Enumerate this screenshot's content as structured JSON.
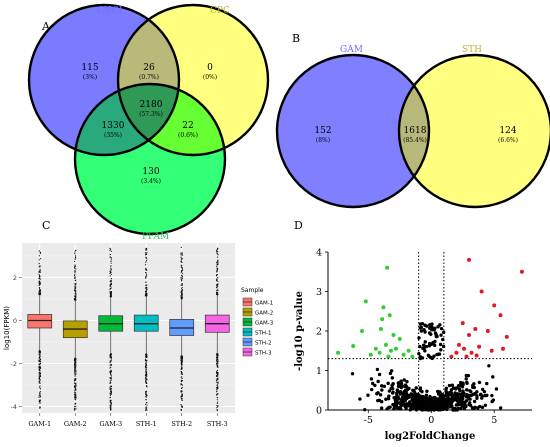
{
  "colors": {
    "cnci": "#7b7bff",
    "cpc": "#ffff7f",
    "pfam": "#33ff77",
    "cnci_cpc": "#b9b97a",
    "cnci_pfam": "#2aa97d",
    "cpc_pfam": "#66ff33",
    "all3": "#2e9a55",
    "gam": "#7f7fff",
    "sth": "#ffff80",
    "gam_sth": "#b8b87a",
    "box_gam1": "#f8766d",
    "box_gam2": "#b79f00",
    "box_gam3": "#00ba38",
    "box_sth1": "#00bfc4",
    "box_sth2": "#619cff",
    "box_sth3": "#f564e3",
    "volcano_up": "#e31a1c",
    "volcano_down": "#33cc33",
    "volcano_ns": "#000000"
  },
  "panels": {
    "a": "A",
    "b": "B",
    "c": "C",
    "d": "D"
  },
  "chart_data": [
    {
      "panel": "A",
      "type": "venn",
      "sets": [
        "CNCI",
        "CPC",
        "PFAM"
      ],
      "regions": [
        {
          "id": "cnci_only",
          "value": "115",
          "pct": "(3%)"
        },
        {
          "id": "cnci_cpc",
          "value": "26",
          "pct": "(0.7%)"
        },
        {
          "id": "cpc_only",
          "value": "0",
          "pct": "(0%)"
        },
        {
          "id": "all",
          "value": "2180",
          "pct": "(57.3%)"
        },
        {
          "id": "cnci_pfam",
          "value": "1330",
          "pct": "(35%)"
        },
        {
          "id": "cpc_pfam",
          "value": "22",
          "pct": "(0.6%)"
        },
        {
          "id": "pfam_only",
          "value": "130",
          "pct": "(3.4%)"
        }
      ]
    },
    {
      "panel": "B",
      "type": "venn",
      "sets": [
        "GAM",
        "STH"
      ],
      "regions": [
        {
          "id": "gam_only",
          "value": "152",
          "pct": "(8%)"
        },
        {
          "id": "both",
          "value": "1618",
          "pct": "(85.4%)"
        },
        {
          "id": "sth_only",
          "value": "124",
          "pct": "(6.6%)"
        }
      ]
    },
    {
      "panel": "C",
      "type": "box",
      "categories": [
        "GAM-1",
        "GAM-2",
        "GAM-3",
        "STH-1",
        "STH-2",
        "STH-3"
      ],
      "ylabel": "log10(FPKM)",
      "ylim": [
        -4.3,
        3.6
      ],
      "yticks": [
        -4,
        -2,
        0,
        2
      ],
      "legend_title": "Sample",
      "legend_position": "right",
      "grid": true,
      "boxes": [
        {
          "q1": -0.35,
          "median": 0.0,
          "q3": 0.28,
          "wlow": -1.4,
          "whigh": 1.2
        },
        {
          "q1": -0.8,
          "median": -0.4,
          "q3": -0.02,
          "wlow": -1.75,
          "whigh": 0.95
        },
        {
          "q1": -0.5,
          "median": -0.15,
          "q3": 0.22,
          "wlow": -1.55,
          "whigh": 1.1
        },
        {
          "q1": -0.5,
          "median": -0.15,
          "q3": 0.25,
          "wlow": -1.55,
          "whigh": 1.15
        },
        {
          "q1": -0.7,
          "median": -0.35,
          "q3": 0.05,
          "wlow": -1.65,
          "whigh": 1.0
        },
        {
          "q1": -0.55,
          "median": -0.15,
          "q3": 0.25,
          "wlow": -1.55,
          "whigh": 1.2
        }
      ],
      "outlier_range": [
        -4.2,
        3.4
      ]
    },
    {
      "panel": "D",
      "type": "scatter",
      "xlabel": "log2FoldChange",
      "ylabel": "-log10 p-value",
      "xlim": [
        -8.2,
        8.0
      ],
      "ylim": [
        0,
        4.0
      ],
      "xticks": [
        -5,
        0,
        5
      ],
      "yticks": [
        0,
        1,
        2,
        3,
        4
      ],
      "vlines": [
        -1,
        1
      ],
      "hline": 1.3,
      "up": [
        [
          3.0,
          3.8
        ],
        [
          7.2,
          3.5
        ],
        [
          4.0,
          3.0
        ],
        [
          5.0,
          2.65
        ],
        [
          5.5,
          2.4
        ],
        [
          2.5,
          2.2
        ],
        [
          3.5,
          2.05
        ],
        [
          4.5,
          2.0
        ],
        [
          3.0,
          1.9
        ],
        [
          6.0,
          1.85
        ],
        [
          2.2,
          1.65
        ],
        [
          3.8,
          1.6
        ],
        [
          2.6,
          1.55
        ],
        [
          4.8,
          1.5
        ],
        [
          2.0,
          1.45
        ],
        [
          3.2,
          1.45
        ],
        [
          5.7,
          1.55
        ],
        [
          2.8,
          1.35
        ],
        [
          3.6,
          1.38
        ],
        [
          1.6,
          1.35
        ]
      ],
      "down": [
        [
          -3.5,
          3.6
        ],
        [
          -5.2,
          2.75
        ],
        [
          -3.8,
          2.6
        ],
        [
          -3.3,
          2.4
        ],
        [
          -3.9,
          2.3
        ],
        [
          -4.0,
          2.05
        ],
        [
          -5.5,
          2.0
        ],
        [
          -3.0,
          1.9
        ],
        [
          -2.5,
          1.8
        ],
        [
          -7.4,
          1.45
        ],
        [
          -4.4,
          1.55
        ],
        [
          -3.6,
          1.65
        ],
        [
          -1.8,
          1.5
        ],
        [
          -4.1,
          1.45
        ],
        [
          -3.2,
          1.5
        ],
        [
          -2.8,
          1.55
        ],
        [
          -2.2,
          1.4
        ],
        [
          -6.2,
          1.62
        ],
        [
          -1.5,
          1.35
        ],
        [
          -4.8,
          1.4
        ],
        [
          -3.4,
          1.35
        ]
      ]
    }
  ]
}
